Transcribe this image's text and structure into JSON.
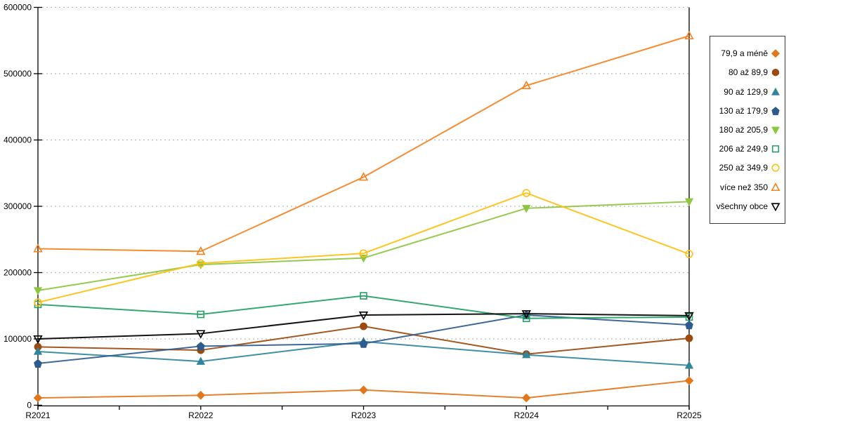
{
  "chart_data": {
    "type": "line",
    "title": "",
    "xlabel": "",
    "ylabel": "",
    "categories": [
      "R2021",
      "R2022",
      "R2023",
      "R2024",
      "R2025"
    ],
    "ylim": [
      0,
      600000
    ],
    "yticks": [
      0,
      100000,
      200000,
      300000,
      400000,
      500000,
      600000
    ],
    "grid": "dotted-horizontal",
    "legend_position": "right",
    "colors": {
      "axis": "#000000",
      "grid": "#b9b9b9",
      "background": "#ffffff",
      "legend_border": "#3a3a3a"
    },
    "series": [
      {
        "name": "79,9 a méně",
        "marker": "diamond",
        "marker_style": "filled",
        "color": "#E2761B",
        "values": [
          11000,
          15000,
          23000,
          11000,
          37000
        ]
      },
      {
        "name": "80 až 89,9",
        "marker": "circle",
        "marker_style": "filled",
        "color": "#9C4A0E",
        "values": [
          88000,
          83000,
          119000,
          77000,
          101000
        ]
      },
      {
        "name": "90 až 129,9",
        "marker": "triangle-up",
        "marker_style": "filled",
        "color": "#31859C",
        "values": [
          81000,
          66000,
          96000,
          76000,
          60000
        ]
      },
      {
        "name": "130 až 179,9",
        "marker": "pentagon",
        "marker_style": "filled",
        "color": "#2F5B8F",
        "values": [
          63000,
          89000,
          93000,
          136000,
          121000
        ]
      },
      {
        "name": "180 až 205,9",
        "marker": "triangle-down",
        "marker_style": "filled",
        "color": "#8DC63F",
        "values": [
          173000,
          212000,
          222000,
          297000,
          307000
        ]
      },
      {
        "name": "206 až 249,9",
        "marker": "square",
        "marker_style": "open",
        "color": "#23A164",
        "values": [
          152000,
          137000,
          165000,
          131000,
          133000
        ]
      },
      {
        "name": "250 až 349,9",
        "marker": "circle",
        "marker_style": "open",
        "color": "#FDC010",
        "values": [
          155000,
          214000,
          229000,
          320000,
          228000
        ]
      },
      {
        "name": "více než 350",
        "marker": "triangle-up",
        "marker_style": "open",
        "color": "#F58220",
        "values": [
          236000,
          232000,
          344000,
          482000,
          557000
        ]
      },
      {
        "name": "všechny obce",
        "marker": "triangle-down",
        "marker_style": "open",
        "color": "#000000",
        "values": [
          100000,
          108000,
          136000,
          138000,
          135000
        ]
      }
    ]
  }
}
